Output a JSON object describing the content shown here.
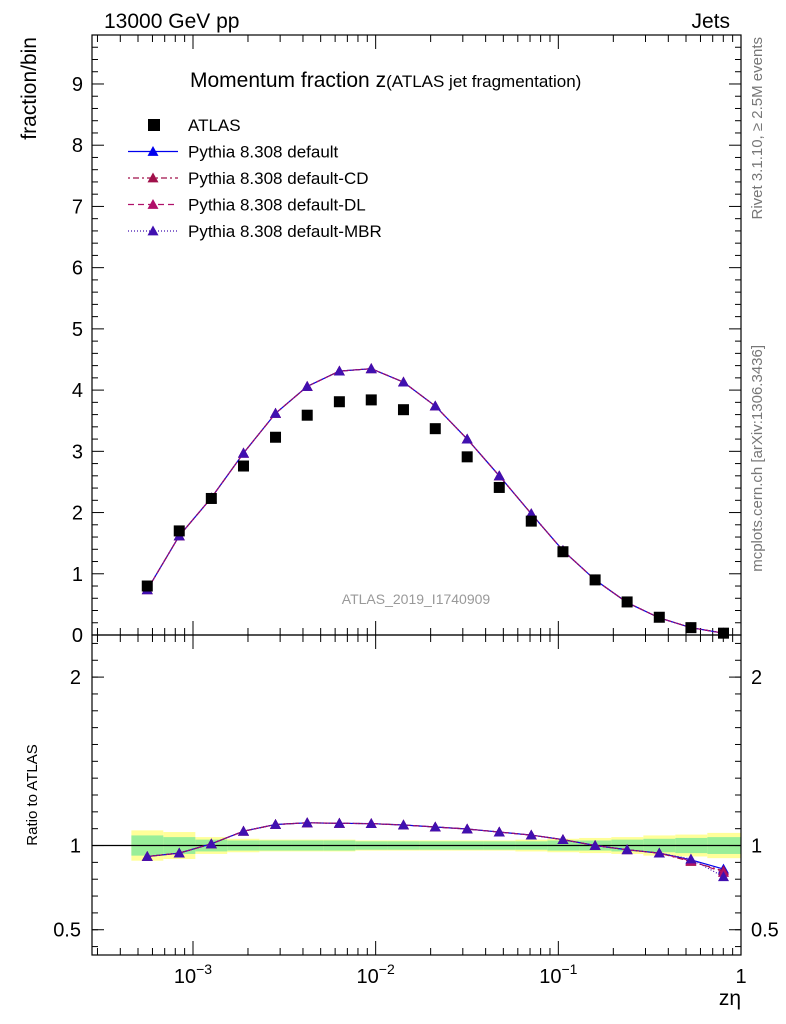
{
  "header": {
    "left": "13000 GeV pp",
    "right": "Jets"
  },
  "side_labels": {
    "rivet": "Rivet 3.1.10, ≥ 2.5M events",
    "source": "mcplots.cern.ch [arXiv:1306.3436]"
  },
  "chart_data": {
    "type": "scatter",
    "title_main": "Momentum fraction z",
    "title_sub": "(ATLAS jet fragmentation)",
    "analysis_label": "ATLAS_2019_I1740909",
    "xlabel": "zη",
    "ylabel": "fraction/bin",
    "ratio_ylabel": "Ratio to ATLAS",
    "xscale": "log",
    "xlim": [
      0.00028,
      1.0
    ],
    "ylim": [
      0,
      9.8
    ],
    "ratio_ylim": [
      0.35,
      2.25
    ],
    "x_ticks": [
      {
        "value": 0.001,
        "base": "10",
        "exp": "−3"
      },
      {
        "value": 0.01,
        "base": "10",
        "exp": "−2"
      },
      {
        "value": 0.1,
        "base": "10",
        "exp": "−1"
      },
      {
        "value": 1,
        "base": "1",
        "exp": ""
      }
    ],
    "y_ticks": [
      "0",
      "1",
      "2",
      "3",
      "4",
      "5",
      "6",
      "7",
      "8",
      "9"
    ],
    "ratio_ticks": [
      {
        "value": 0.5,
        "label": "0.5"
      },
      {
        "value": 1,
        "label": "1"
      },
      {
        "value": 2,
        "label": "2"
      }
    ],
    "legend_position": "top-left",
    "x": [
      0.000562,
      0.000841,
      0.00126,
      0.00189,
      0.00283,
      0.00422,
      0.00633,
      0.00946,
      0.0142,
      0.0212,
      0.0317,
      0.0475,
      0.0711,
      0.106,
      0.159,
      0.238,
      0.357,
      0.532,
      0.802
    ],
    "bin_edges": [
      0.00046,
      0.000688,
      0.00103,
      0.00154,
      0.00231,
      0.00346,
      0.00517,
      0.00774,
      0.0116,
      0.0173,
      0.026,
      0.0389,
      0.0582,
      0.0871,
      0.13,
      0.195,
      0.292,
      0.437,
      0.654,
      1.0
    ],
    "data": {
      "name": "ATLAS",
      "values": [
        0.8,
        1.7,
        2.23,
        2.76,
        3.23,
        3.59,
        3.81,
        3.84,
        3.68,
        3.37,
        2.91,
        2.41,
        1.86,
        1.36,
        0.9,
        0.54,
        0.29,
        0.12,
        0.03
      ],
      "ratio_band_inner": [
        0.06,
        0.05,
        0.035,
        0.03,
        0.03,
        0.03,
        0.03,
        0.025,
        0.025,
        0.025,
        0.025,
        0.025,
        0.025,
        0.03,
        0.03,
        0.035,
        0.04,
        0.045,
        0.05
      ],
      "ratio_band_outer": [
        0.09,
        0.08,
        0.05,
        0.04,
        0.035,
        0.035,
        0.035,
        0.03,
        0.03,
        0.03,
        0.03,
        0.03,
        0.035,
        0.04,
        0.045,
        0.05,
        0.06,
        0.065,
        0.075
      ]
    },
    "series": [
      {
        "name": "Pythia 8.308 default",
        "color": "#0000ee",
        "dash": "",
        "values": [
          0.74,
          1.62,
          2.24,
          2.97,
          3.62,
          4.06,
          4.31,
          4.35,
          4.13,
          3.74,
          3.2,
          2.6,
          1.98,
          1.38,
          0.9,
          0.53,
          0.28,
          0.12,
          0.03
        ],
        "ratio": [
          0.935,
          0.955,
          1.01,
          1.085,
          1.125,
          1.135,
          1.132,
          1.13,
          1.122,
          1.11,
          1.098,
          1.08,
          1.062,
          1.035,
          1.0,
          0.975,
          0.955,
          0.915,
          0.86
        ]
      },
      {
        "name": "Pythia 8.308 default-CD",
        "color": "#a0104a",
        "dash": "2,3,6,3",
        "values": [
          0.74,
          1.62,
          2.24,
          2.97,
          3.62,
          4.06,
          4.31,
          4.35,
          4.13,
          3.74,
          3.2,
          2.6,
          1.98,
          1.38,
          0.9,
          0.53,
          0.28,
          0.12,
          0.03
        ],
        "ratio": [
          0.935,
          0.955,
          1.01,
          1.085,
          1.125,
          1.135,
          1.132,
          1.13,
          1.122,
          1.11,
          1.098,
          1.08,
          1.062,
          1.035,
          1.0,
          0.975,
          0.955,
          0.905,
          0.85
        ]
      },
      {
        "name": "Pythia 8.308 default-DL",
        "color": "#b0106a",
        "dash": "6,4",
        "values": [
          0.74,
          1.62,
          2.24,
          2.97,
          3.62,
          4.06,
          4.31,
          4.35,
          4.13,
          3.74,
          3.2,
          2.6,
          1.98,
          1.38,
          0.9,
          0.53,
          0.28,
          0.12,
          0.03
        ],
        "ratio": [
          0.935,
          0.955,
          1.01,
          1.085,
          1.125,
          1.135,
          1.132,
          1.13,
          1.122,
          1.11,
          1.098,
          1.08,
          1.062,
          1.035,
          1.0,
          0.975,
          0.955,
          0.91,
          0.84
        ]
      },
      {
        "name": "Pythia 8.308 default-MBR",
        "color": "#4010b0",
        "dash": "1,2",
        "values": [
          0.74,
          1.62,
          2.24,
          2.97,
          3.62,
          4.06,
          4.31,
          4.35,
          4.13,
          3.74,
          3.2,
          2.6,
          1.98,
          1.38,
          0.9,
          0.53,
          0.28,
          0.12,
          0.03
        ],
        "ratio": [
          0.935,
          0.955,
          1.01,
          1.085,
          1.125,
          1.135,
          1.132,
          1.13,
          1.122,
          1.11,
          1.098,
          1.08,
          1.062,
          1.035,
          1.0,
          0.975,
          0.955,
          0.92,
          0.815
        ]
      }
    ]
  }
}
